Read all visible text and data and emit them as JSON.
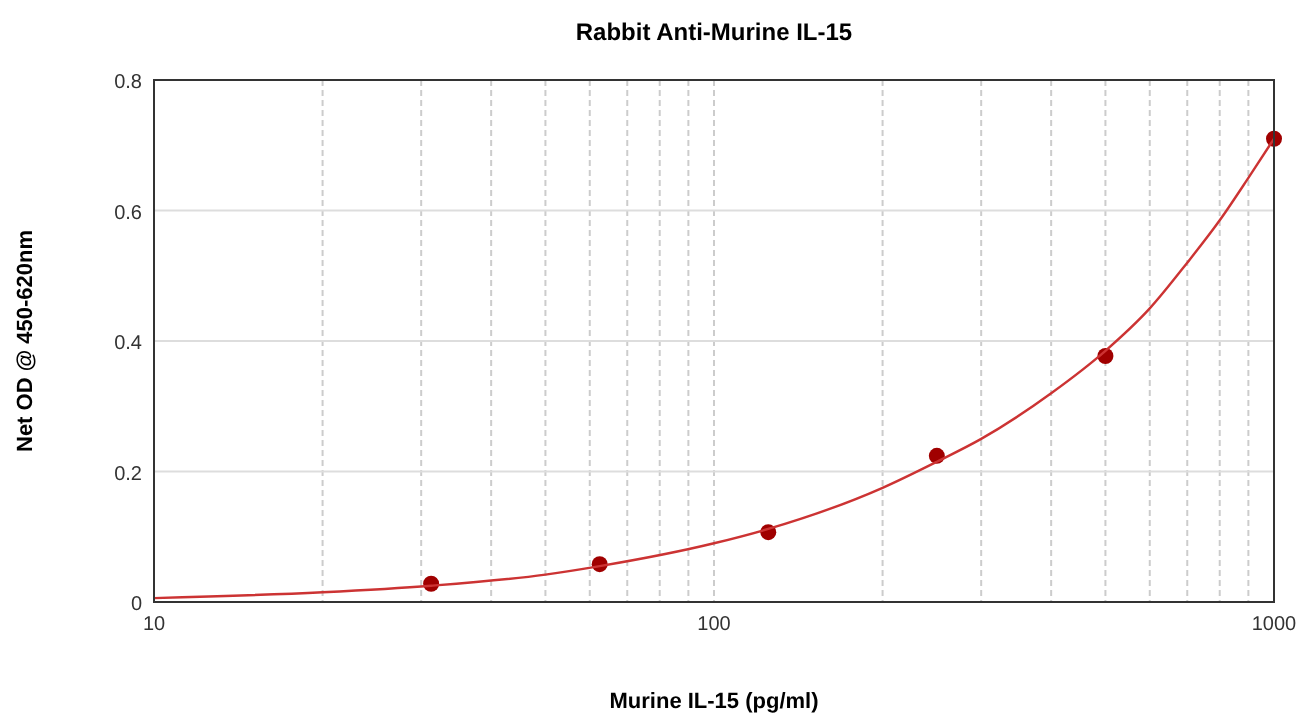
{
  "chart_data": {
    "type": "scatter",
    "title": "Rabbit Anti-Murine IL-15",
    "xlabel": "Murine IL-15 (pg/ml)",
    "ylabel": "Net OD @ 450-620nm",
    "log": "x",
    "xlim": [
      10,
      1000
    ],
    "ylim": [
      0,
      0.8
    ],
    "xticks": [
      10,
      {
        "value": 20,
        "label": null
      },
      {
        "value": 30,
        "label": null
      },
      {
        "value": 40,
        "label": null
      },
      {
        "value": 50,
        "label": null
      },
      {
        "value": 60,
        "label": null
      },
      {
        "value": 70,
        "label": null
      },
      {
        "value": 80,
        "label": null
      },
      {
        "value": 90,
        "label": null
      },
      100,
      {
        "value": 200,
        "label": null
      },
      {
        "value": 300,
        "label": null
      },
      {
        "value": 400,
        "label": null
      },
      {
        "value": 500,
        "label": null
      },
      {
        "value": 600,
        "label": null
      },
      {
        "value": 700,
        "label": null
      },
      {
        "value": 800,
        "label": null
      },
      {
        "value": 900,
        "label": null
      },
      1000
    ],
    "yticks": [
      0,
      0.2,
      0.4,
      0.6,
      0.8
    ],
    "grid": true,
    "marker": "circle",
    "series": [
      {
        "color": "#a00000",
        "x": [
          31.25,
          62.5,
          125,
          250,
          500,
          1000
        ],
        "values": [
          0.028,
          0.058,
          0.107,
          0.224,
          0.377,
          0.71
        ]
      },
      {
        "type": "line",
        "color": "#cc3333",
        "marker": "none",
        "x": [
          10,
          20,
          31.25,
          50,
          62.5,
          100,
          125,
          200,
          250,
          300,
          400,
          500,
          600,
          700,
          800,
          900,
          1000
        ],
        "values": [
          0.006,
          0.015,
          0.025,
          0.042,
          0.055,
          0.09,
          0.112,
          0.175,
          0.215,
          0.25,
          0.32,
          0.385,
          0.45,
          0.52,
          0.585,
          0.65,
          0.71
        ]
      }
    ]
  }
}
